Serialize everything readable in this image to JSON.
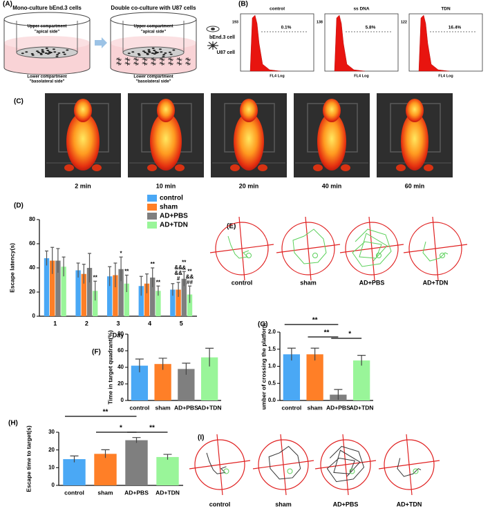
{
  "panels": {
    "A": {
      "label": "(A)",
      "titles": [
        "Mono-culture bEnd.3 cells",
        "Double  co-culture with U87 cells"
      ],
      "upper": "Upper compartment",
      "apical": "\"apical side\"",
      "lower": "Lower compartment",
      "basolateral": "\"basolateral side\""
    },
    "B": {
      "label": "(B)",
      "cell_labels": [
        "bEnd.3 cell",
        "U87 cell"
      ],
      "plots": [
        {
          "title": "control",
          "max": 193,
          "percent": "0.1%",
          "xlabel": "FL4 Log"
        },
        {
          "title": "ss DNA",
          "max": 138,
          "percent": "5.8%",
          "xlabel": "FL4 Log"
        },
        {
          "title": "TDN",
          "max": 122,
          "percent": "16.4%",
          "xlabel": "FL4 Log"
        }
      ]
    },
    "C": {
      "label": "(C)",
      "times": [
        "2 min",
        "10 min",
        "20 min",
        "40 min",
        "60 min"
      ]
    },
    "E": {
      "label": "(E)",
      "groups": [
        "control",
        "sham",
        "AD+PBS",
        "AD+TDN"
      ]
    },
    "I": {
      "label": "(I)",
      "groups": [
        "control",
        "sham",
        "AD+PBS",
        "AD+TDN"
      ]
    }
  },
  "chart_data": [
    {
      "type": "bar",
      "panel_label": "(D)",
      "ylabel": "Escape latency(s)",
      "xlabel": "Day",
      "categories": [
        "1",
        "2",
        "3",
        "4",
        "5"
      ],
      "series": [
        {
          "name": "control",
          "color": "#4aa8f5",
          "values": [
            48,
            38,
            33,
            25,
            22
          ],
          "errors": [
            6,
            6,
            8,
            8,
            5
          ]
        },
        {
          "name": "sham",
          "color": "#ff7f27",
          "values": [
            46,
            35,
            34,
            27,
            22
          ],
          "errors": [
            11,
            8,
            10,
            8,
            6
          ]
        },
        {
          "name": "AD+PBS",
          "color": "#7f7f7f",
          "values": [
            46,
            40,
            39,
            32,
            31
          ],
          "errors": [
            10,
            12,
            10,
            8,
            6
          ]
        },
        {
          "name": "AD+TDN",
          "color": "#99f599",
          "values": [
            41,
            21,
            27,
            21,
            18
          ],
          "errors": [
            8,
            8,
            7,
            4,
            7
          ]
        }
      ],
      "significance": [
        {
          "series": 3,
          "index": 1,
          "lines": [
            "**"
          ]
        },
        {
          "series": 2,
          "index": 2,
          "lines": [
            "*"
          ]
        },
        {
          "series": 3,
          "index": 2,
          "lines": [
            "**"
          ]
        },
        {
          "series": 2,
          "index": 3,
          "lines": [
            "**"
          ]
        },
        {
          "series": 3,
          "index": 3,
          "lines": [
            "**"
          ]
        },
        {
          "series": 1,
          "index": 4,
          "lines": [
            "&&",
            "&&",
            "#"
          ]
        },
        {
          "series": 2,
          "index": 4,
          "lines": [
            "**",
            "&"
          ]
        },
        {
          "series": 3,
          "index": 4,
          "lines": [
            "**",
            "&&",
            "##"
          ]
        }
      ],
      "ylim": [
        0,
        80
      ],
      "yticks": [
        0,
        20,
        40,
        60,
        80
      ],
      "legend": "top-right"
    },
    {
      "type": "bar",
      "panel_label": "(F)",
      "ylabel": "Time in target quadrant(%)",
      "categories": [
        "control",
        "sham",
        "AD+PBS",
        "AD+TDN"
      ],
      "values": [
        42,
        44,
        38,
        52
      ],
      "errors": [
        8,
        7,
        7,
        11
      ],
      "colors": [
        "#4aa8f5",
        "#ff7f27",
        "#7f7f7f",
        "#99f599"
      ],
      "ylim": [
        0,
        80
      ],
      "yticks": [
        0,
        20,
        40,
        60,
        80
      ]
    },
    {
      "type": "bar",
      "panel_label": "(G)",
      "ylabel": "umber of crossing the platform",
      "categories": [
        "control",
        "sham",
        "AD+PBS",
        "AD+TDN"
      ],
      "values": [
        1.35,
        1.35,
        0.17,
        1.17
      ],
      "errors": [
        0.18,
        0.18,
        0.15,
        0.15
      ],
      "colors": [
        "#4aa8f5",
        "#ff7f27",
        "#7f7f7f",
        "#99f599"
      ],
      "brackets": [
        {
          "from": 0,
          "to": 2,
          "text": "**"
        },
        {
          "from": 1,
          "to": 2,
          "text": "**"
        },
        {
          "from": 2,
          "to": 3,
          "text": "*"
        }
      ],
      "ylim": [
        0,
        2
      ],
      "yticks": [
        {
          "value": 0,
          "label": "0.0"
        },
        0.5,
        {
          "value": 1,
          "label": "1.0"
        },
        1.5,
        {
          "value": 2,
          "label": "2.0"
        }
      ]
    },
    {
      "type": "bar",
      "panel_label": "(H)",
      "ylabel": "Escape time to target(s)",
      "categories": [
        "control",
        "sham",
        "AD+PBS",
        "AD+TDN"
      ],
      "values": [
        14.8,
        17.8,
        25.5,
        16
      ],
      "errors": [
        1.8,
        2.3,
        1.5,
        1.5
      ],
      "colors": [
        "#4aa8f5",
        "#ff7f27",
        "#7f7f7f",
        "#99f599"
      ],
      "brackets": [
        {
          "from": 0,
          "to": 2,
          "text": "**"
        },
        {
          "from": 1,
          "to": 2,
          "text": "*"
        },
        {
          "from": 2,
          "to": 3,
          "text": "**"
        }
      ],
      "ylim": [
        0,
        30
      ],
      "yticks": [
        0,
        10,
        20,
        30
      ]
    }
  ]
}
